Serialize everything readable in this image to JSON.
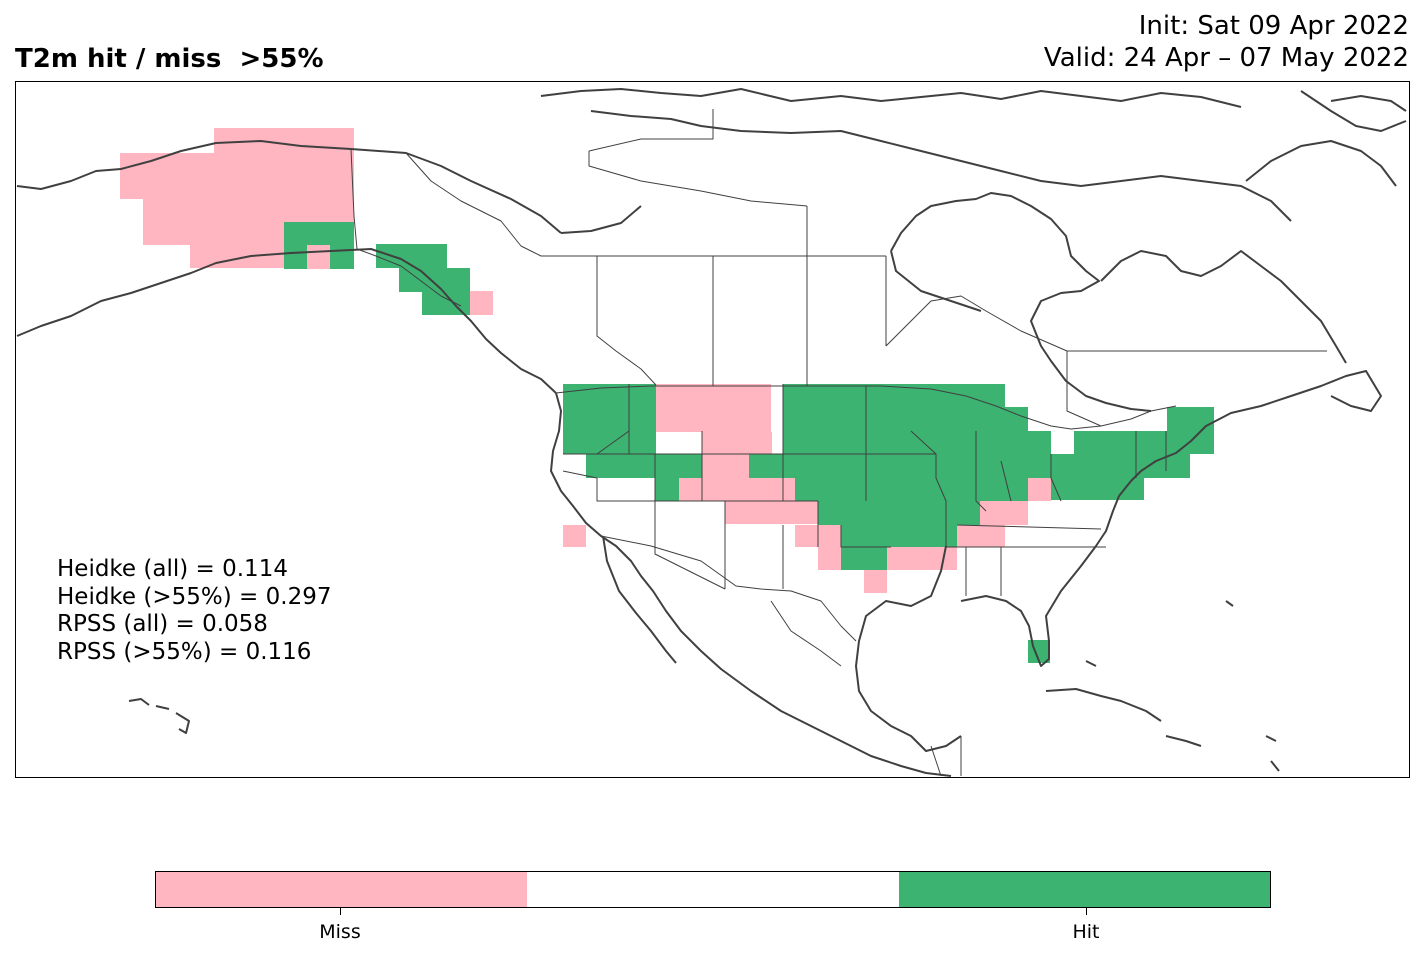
{
  "title": "T2m hit / miss  >55%",
  "init_text": "Init: Sat 09 Apr 2022",
  "valid_text": "Valid: 24 Apr – 07 May 2022",
  "scores": [
    "Heidke (all) = 0.114",
    "Heidke (>55%) = 0.297",
    "RPSS (all) = 0.058",
    "RPSS (>55%) = 0.116"
  ],
  "colors": {
    "miss": "#ffb6c1",
    "neutral": "#ffffff",
    "hit": "#3cb371",
    "coast": "#404040"
  },
  "colorbar": {
    "segments": [
      "miss",
      "neutral",
      "hit"
    ],
    "ticks": [
      "Miss",
      "Hit"
    ]
  },
  "chart_data": {
    "type": "heatmap",
    "title": "T2m hit / miss  >55%",
    "categories": [
      "Miss",
      "Hit"
    ]
  }
}
